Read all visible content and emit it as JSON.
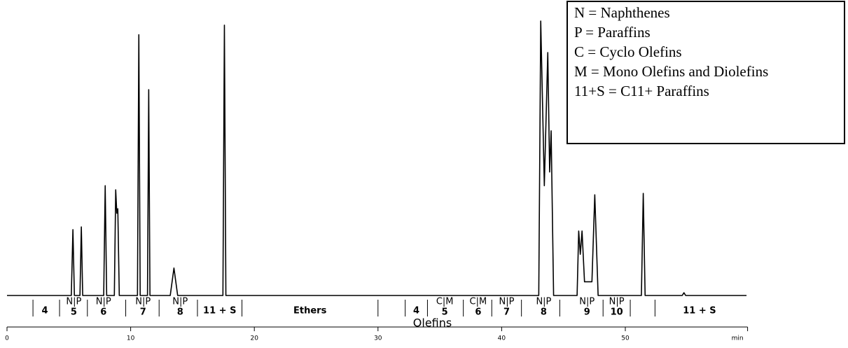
{
  "chart_data": {
    "type": "line",
    "x_unit_label": "min",
    "xlim": [
      0,
      60
    ],
    "xticks": [
      0,
      10,
      20,
      30,
      40,
      50
    ],
    "ylim": [
      0,
      100
    ],
    "series": [
      {
        "color": "#000000",
        "x": [
          0,
          5.2,
          5.33,
          5.45,
          5.9,
          6.01,
          6.12,
          7.82,
          7.94,
          8.06,
          8.68,
          8.79,
          8.88,
          8.96,
          9.08,
          10.55,
          10.66,
          10.77,
          11.36,
          11.46,
          11.56,
          13.2,
          13.5,
          13.8,
          17.46,
          17.58,
          17.7,
          43.0,
          43.16,
          43.45,
          43.73,
          43.88,
          44.0,
          44.2,
          46.1,
          46.23,
          46.36,
          46.5,
          46.7,
          47.3,
          47.53,
          47.8,
          51.3,
          51.45,
          51.6,
          54.6,
          54.74,
          54.88,
          59.8
        ],
        "values": [
          0,
          0,
          24,
          0,
          0,
          25,
          0,
          0,
          40,
          0,
          0,
          38.5,
          30,
          31.6,
          0,
          0,
          95,
          0,
          0,
          75,
          0,
          0,
          10,
          0,
          0,
          98.5,
          0,
          0,
          100,
          40,
          88.5,
          45,
          60,
          0,
          0,
          23.5,
          15,
          23.5,
          5,
          5,
          36.7,
          0,
          0,
          37.2,
          0,
          0,
          1,
          0,
          0
        ]
      }
    ],
    "separators": [
      2.1,
      4.25,
      6.5,
      9.6,
      12.3,
      15.4,
      19.0,
      30.0,
      32.2,
      34.0,
      36.9,
      39.2,
      41.6,
      44.7,
      48.2,
      50.4,
      52.4
    ],
    "bands": [
      {
        "label": "4",
        "x": 3.06
      },
      {
        "top": "N|P",
        "label": "5",
        "x": 5.4
      },
      {
        "top": "N|P",
        "label": "6",
        "x": 7.8
      },
      {
        "top": "N|P",
        "label": "7",
        "x": 11.0
      },
      {
        "top": "N|P",
        "label": "8",
        "x": 14.0
      },
      {
        "label": "11 + S",
        "x": 17.2
      },
      {
        "label": "Ethers",
        "x": 24.5
      },
      {
        "label": "4",
        "x": 33.1
      },
      {
        "top": "C|M",
        "label": "5",
        "x": 35.4
      },
      {
        "top": "C|M",
        "label": "6",
        "x": 38.1
      },
      {
        "top": "N|P",
        "label": "7",
        "x": 40.4
      },
      {
        "top": "N|P",
        "label": "8",
        "x": 43.4
      },
      {
        "top": "N|P",
        "label": "9",
        "x": 46.9
      },
      {
        "top": "N|P",
        "label": "10",
        "x": 49.3
      },
      {
        "label": "11 + S",
        "x": 56.0
      }
    ],
    "group_label": {
      "text": "Olefins",
      "x": 34.4
    },
    "key": [
      "N = Naphthenes",
      "P = Paraffins",
      "C = Cyclo Olefins",
      "M = Mono Olefins and Diolefins",
      "11+S = C11+ Paraffins"
    ]
  }
}
